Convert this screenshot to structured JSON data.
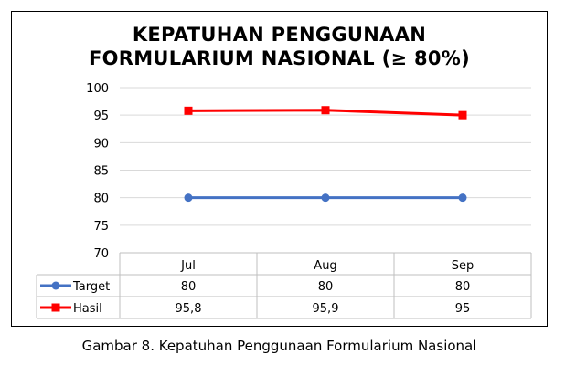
{
  "chart_data": {
    "type": "line",
    "title_line1": "KEPATUHAN PENGGUNAAN",
    "title_line2": "FORMULARIUM NASIONAL (≥ 80%)",
    "categories": [
      "Jul",
      "Aug",
      "Sep"
    ],
    "yticks": [
      "100",
      "95",
      "90",
      "85",
      "80",
      "75",
      "70"
    ],
    "ylim": [
      70,
      100
    ],
    "grid": true,
    "series": [
      {
        "name": "Target",
        "values": [
          80,
          80,
          80
        ],
        "labels": [
          "80",
          "80",
          "80"
        ],
        "color": "#4472C4",
        "marker": "circle"
      },
      {
        "name": "Hasil",
        "values": [
          95.8,
          95.9,
          95
        ],
        "labels": [
          "95,8",
          "95,9",
          "95"
        ],
        "color": "#FF0000",
        "marker": "square"
      }
    ]
  },
  "caption": "Gambar 8. Kepatuhan Penggunaan Formularium Nasional"
}
